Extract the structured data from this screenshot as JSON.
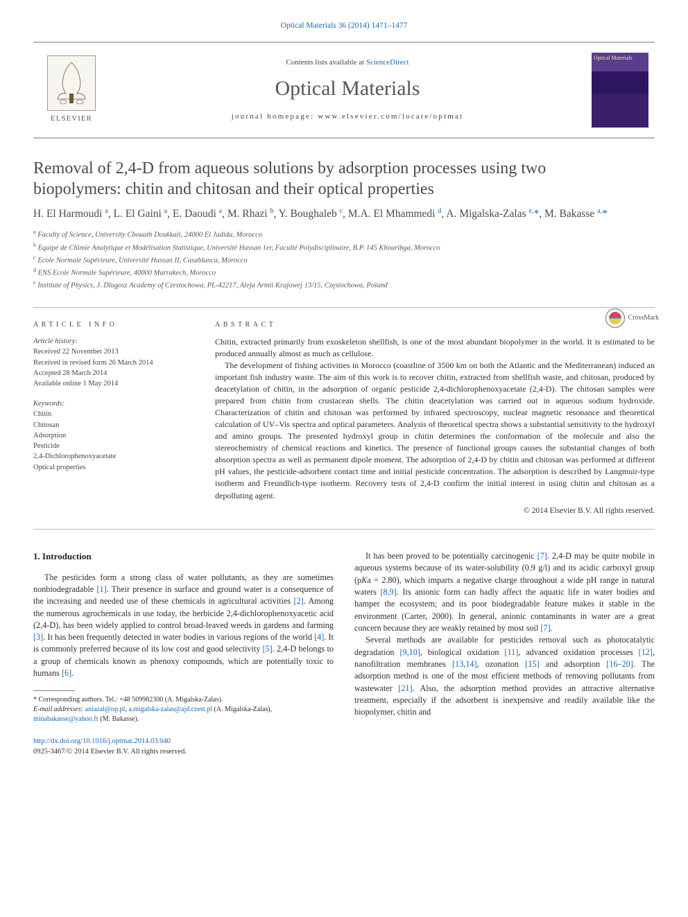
{
  "citation": "Optical Materials 36 (2014) 1471–1477",
  "header": {
    "contents_prefix": "Contents lists available at ",
    "contents_link": "ScienceDirect",
    "journal_name": "Optical Materials",
    "homepage_label": "journal homepage: www.elsevier.com/locate/optmat",
    "publisher": "ELSEVIER",
    "cover_title": "Optical Materials"
  },
  "crossmark_label": "CrossMark",
  "title": "Removal of 2,4-D from aqueous solutions by adsorption processes using two biopolymers: chitin and chitosan and their optical properties",
  "authors_html": "H. El Harmoudi <sup>a</sup>, L. El Gaini <sup>a</sup>, E. Daoudi <sup>a</sup>, M. Rhazi <sup>b</sup>, Y. Boughaleb <sup>c</sup>, M.A. El Mhammedi <sup>d</sup>, A. Migalska-Zalas <sup>e,</sup><span class='ast'>*</span>, M. Bakasse <sup>a,</sup><span class='ast'>*</span>",
  "affiliations": [
    {
      "sup": "a",
      "text": "Faculty of Science, University Chouaib Doukkali, 24000 El Jadida, Morocco"
    },
    {
      "sup": "b",
      "text": "Equipe de Chimie Analytique et Modélisation Statistique, Université Hassan 1er, Faculté Polydisciplinaire, B.P. 145 Khouribga, Morocco"
    },
    {
      "sup": "c",
      "text": "Ecole Normale Supérieure, Université Hassan II, Casablanca, Morocco"
    },
    {
      "sup": "d",
      "text": "ENS Ecole Normale Supérieure, 40000 Marrakech, Morocco"
    },
    {
      "sup": "e",
      "text": "Institute of Physics, J. Dlugosz Academy of Czestochowa, PL-42217, Aleja Armii Krajowej 13/15, Częstochowa, Poland"
    }
  ],
  "article_info_label": "article info",
  "abstract_label": "abstract",
  "history": {
    "heading": "Article history:",
    "received": "Received 22 November 2013",
    "revised": "Received in revised form 26 March 2014",
    "accepted": "Accepted 28 March 2014",
    "online": "Available online 1 May 2014"
  },
  "keywords": {
    "heading": "Keywords:",
    "items": [
      "Chitin",
      "Chitosan",
      "Adsorption",
      "Pesticide",
      "2,4-Dichlorophenoxyacetate",
      "Optical properties"
    ]
  },
  "abstract": {
    "p1": "Chitin, extracted primarily from exoskeleton shellfish, is one of the most abundant biopolymer in the world. It is estimated to be produced annually almost as much as cellulose.",
    "p2": "The development of fishing activities in Morocco (coastline of 3500 km on both the Atlantic and the Mediterranean) induced an important fish industry waste. The aim of this work is to recover chitin, extracted from shellfish waste, and chitosan, produced by deacetylation of chitin, in the adsorption of organic pesticide 2,4-dichlorophenoxyacetate (2,4-D). The chitosan samples were prepared from chitin from crustacean shells. The chitin deacetylation was carried out in aqueous sodium hydroxide. Characterization of chitin and chitosan was performed by infrared spectroscopy, nuclear magnetic resonance and theoretical calculation of UV–Vis spectra and optical parameters. Analysis of theoretical spectra shows a substantial sensitivity to the hydroxyl and amino groups. The presented hydroxyl group in chitin determines the conformation of the molecule and also the stereochemistry of chemical reactions and kinetics. The presence of functional groups causes the substantial changes of both absorption spectra as well as permanent dipole moment. The adsorption of 2,4-D by chitin and chitosan was performed at different pH values, the pesticide-adsorbent contact time and initial pesticide concentration. The adsorption is described by Langmuir-type isotherm and Freundlich-type isotherm. Recovery tests of 2,4-D confirm the initial interest in using chitin and chitosan as a depolluting agent."
  },
  "copyright": "© 2014 Elsevier B.V. All rights reserved.",
  "intro_heading": "1. Introduction",
  "body": {
    "col1_p1": "The pesticides form a strong class of water pollutants, as they are sometimes nonbiodegradable [1]. Their presence in surface and ground water is a consequence of the increasing and needed use of these chemicals in agricultural activities [2]. Among the numerous agrochemicals in use today, the herbicide 2,4-dichlorophenoxyacetic acid (2,4-D), has been widely applied to control broad-leaved weeds in gardens and farming [3]. It has been frequently detected in water bodies in various regions of the world [4]. It is commonly preferred because of its low cost and good selectivity [5]. 2,4-D belongs to a group of chemicals known as phenoxy compounds, which are potentially toxic to humans [6].",
    "col2_p1": "It has been proved to be potentially carcinogenic [7]. 2,4-D may be quite mobile in aqueous systems because of its water-solubility (0.9 g/l) and its acidic carboxyl group (pKa = 2.80), which imparts a negative charge throughout a wide pH range in natural waters [8,9]. Its anionic form can badly affect the aquatic life in water bodies and hamper the ecosystem; and its poor biodegradable feature makes it stable in the environment (Carter, 2000). In general, anionic contaminants in water are a great concern because they are weakly retained by most soil [7].",
    "col2_p2": "Several methods are available for pesticides removal such as photocatalytic degradation [9,10], biological oxidation [11], advanced oxidation processes [12], nanofiltration membranes [13,14], ozonation [15] and adsorption [16–20]. The adsorption method is one of the most efficient methods of removing pollutants from wastewater [21]. Also, the adsorption method provides an attractive alternative treatment, especially if the adsorbent is inexpensive and readily available like the biopolymer, chitin and"
  },
  "footnotes": {
    "corr": "* Corresponding authors. Tel.: +48 509982300 (A. Migalska-Zalas).",
    "emails_label": "E-mail addresses: ",
    "email1": "aniazal@op.pl",
    "email2": "a.migalska-zalas@ajd.czest.pl",
    "email1_owner": " (A. Migalska-Zalas), ",
    "email3": "minabakasse@yahoo.fr",
    "email3_owner": " (M. Bakasse)."
  },
  "doi": {
    "url": "http://dx.doi.org/10.1016/j.optmat.2014.03.040",
    "issn_line": "0925-3467/© 2014 Elsevier B.V. All rights reserved."
  },
  "colors": {
    "link": "#1768b3",
    "rule": "#b8b8b8",
    "text": "#2e2e2e",
    "heading": "#4a4a4a"
  },
  "typography": {
    "title_fontsize_pt": 18,
    "body_fontsize_pt": 9,
    "abstract_fontsize_pt": 9,
    "affil_fontsize_pt": 8,
    "font_family": "Georgia/Times serif"
  }
}
